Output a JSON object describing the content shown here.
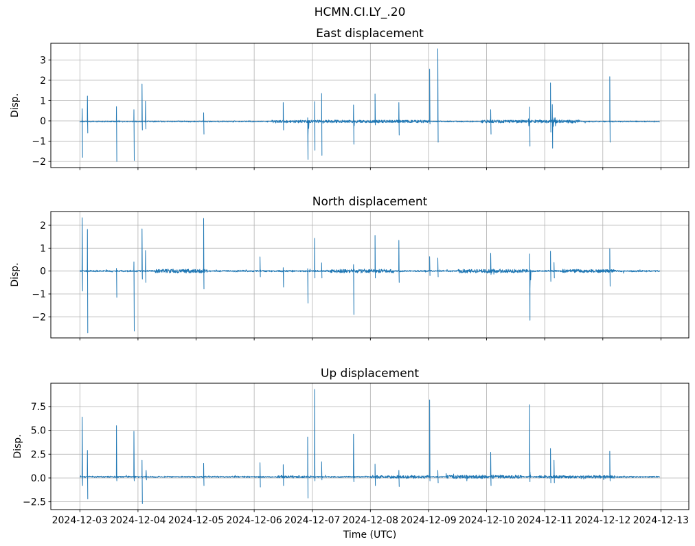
{
  "figure": {
    "suptitle": "HCMN.CI.LY_.20",
    "background_color": "#ffffff",
    "text_color": "#000000",
    "grid_color": "#b0b0b0",
    "spine_color": "#000000",
    "line_color": "#1f77b4"
  },
  "x_axis": {
    "label": "Time (UTC)",
    "tick_days": [
      1,
      2,
      3,
      4,
      5,
      6,
      7,
      8,
      9,
      10,
      11
    ],
    "tick_labels": [
      "2024-12-03",
      "2024-12-04",
      "2024-12-05",
      "2024-12-06",
      "2024-12-07",
      "2024-12-08",
      "2024-12-09",
      "2024-12-10",
      "2024-12-11",
      "2024-12-12",
      "2024-12-13"
    ]
  },
  "chart_data": [
    {
      "id": "east",
      "type": "line",
      "title": "East displacement",
      "ylabel": "Disp.",
      "grid": true,
      "show_x_tick_labels": false,
      "xlim_days": [
        0.5,
        11.48
      ],
      "ylim": [
        -2.3,
        3.82
      ],
      "y_ticks": [
        {
          "v": -2,
          "label": "−2"
        },
        {
          "v": -1,
          "label": "−1"
        },
        {
          "v": 0,
          "label": "0"
        },
        {
          "v": 1,
          "label": "1"
        },
        {
          "v": 2,
          "label": "2"
        },
        {
          "v": 3,
          "label": "3"
        }
      ],
      "baseline": -0.03,
      "noise": 0.03,
      "data_start_day": 1.0,
      "data_end_day": 10.98,
      "noise_bands": [
        {
          "from": 4.3,
          "to": 7.0,
          "amp": 0.04
        },
        {
          "from": 7.9,
          "to": 9.6,
          "amp": 0.05
        }
      ],
      "spikes": [
        {
          "day": 1.04,
          "up": 0.6,
          "down": -1.8
        },
        {
          "day": 1.13,
          "up": 1.22,
          "down": -0.6
        },
        {
          "day": 1.63,
          "up": 0.7,
          "down": -2.0
        },
        {
          "day": 1.93,
          "up": 0.55,
          "down": -1.95
        },
        {
          "day": 2.07,
          "up": 1.82,
          "down": -0.45
        },
        {
          "day": 2.13,
          "up": 0.97,
          "down": -0.4
        },
        {
          "day": 3.13,
          "up": 0.4,
          "down": -0.65
        },
        {
          "day": 4.5,
          "up": 0.9,
          "down": -0.45
        },
        {
          "day": 4.92,
          "up": 0.15,
          "down": -1.9,
          "w": 0.03
        },
        {
          "day": 5.04,
          "up": 0.95,
          "down": -1.45
        },
        {
          "day": 5.16,
          "up": 1.35,
          "down": -1.7
        },
        {
          "day": 5.71,
          "up": 0.78,
          "down": -1.15,
          "w": 0.02
        },
        {
          "day": 6.08,
          "up": 1.32,
          "down": -0.2
        },
        {
          "day": 6.49,
          "up": 0.9,
          "down": -0.7
        },
        {
          "day": 7.02,
          "up": 2.55,
          "down": -0.15
        },
        {
          "day": 7.16,
          "up": 3.55,
          "down": -1.05
        },
        {
          "day": 8.07,
          "up": 0.55,
          "down": -0.65
        },
        {
          "day": 8.72,
          "up": 0.1,
          "down": -0.25,
          "w": 0.05
        },
        {
          "day": 8.74,
          "up": 0.68,
          "down": -1.25
        },
        {
          "day": 9.1,
          "up": 1.87,
          "down": -0.55
        },
        {
          "day": 9.13,
          "up": 0.8,
          "down": -1.35,
          "w": 0.03
        },
        {
          "day": 9.18,
          "up": 0.15,
          "down": -0.25,
          "w": 0.05
        },
        {
          "day": 10.12,
          "up": 2.17,
          "down": -1.05
        }
      ]
    },
    {
      "id": "north",
      "type": "line",
      "title": "North displacement",
      "ylabel": "Disp.",
      "grid": true,
      "show_x_tick_labels": false,
      "xlim_days": [
        0.5,
        11.48
      ],
      "ylim": [
        -2.92,
        2.6
      ],
      "y_ticks": [
        {
          "v": -2,
          "label": "−2"
        },
        {
          "v": -1,
          "label": "−1"
        },
        {
          "v": 0,
          "label": "0"
        },
        {
          "v": 1,
          "label": "1"
        },
        {
          "v": 2,
          "label": "2"
        }
      ],
      "baseline": 0.0,
      "noise": 0.035,
      "data_start_day": 1.0,
      "data_end_day": 10.98,
      "noise_bands": [
        {
          "from": 2.3,
          "to": 3.2,
          "amp": 0.05
        },
        {
          "from": 5.3,
          "to": 6.4,
          "amp": 0.05
        },
        {
          "from": 7.5,
          "to": 8.7,
          "amp": 0.05
        },
        {
          "from": 9.3,
          "to": 10.2,
          "amp": 0.04
        }
      ],
      "spikes": [
        {
          "day": 1.04,
          "up": 2.33,
          "down": -0.87
        },
        {
          "day": 1.13,
          "up": 1.82,
          "down": -2.7
        },
        {
          "day": 1.63,
          "up": 0.12,
          "down": -1.15
        },
        {
          "day": 1.93,
          "up": 0.4,
          "down": -2.62
        },
        {
          "day": 2.07,
          "up": 1.84,
          "down": -0.35
        },
        {
          "day": 2.13,
          "up": 0.9,
          "down": -0.5
        },
        {
          "day": 3.13,
          "up": 2.3,
          "down": -0.78
        },
        {
          "day": 4.1,
          "up": 0.62,
          "down": -0.25
        },
        {
          "day": 4.5,
          "up": 0.15,
          "down": -0.7
        },
        {
          "day": 4.92,
          "up": 0.1,
          "down": -1.4
        },
        {
          "day": 5.04,
          "up": 1.43,
          "down": -0.3
        },
        {
          "day": 5.16,
          "up": 0.36,
          "down": -0.3
        },
        {
          "day": 5.71,
          "up": 0.28,
          "down": -1.9
        },
        {
          "day": 6.08,
          "up": 1.56,
          "down": -0.3
        },
        {
          "day": 6.49,
          "up": 1.34,
          "down": -0.5
        },
        {
          "day": 7.02,
          "up": 0.63,
          "down": -0.2
        },
        {
          "day": 7.16,
          "up": 0.57,
          "down": -0.25
        },
        {
          "day": 8.07,
          "up": 0.78,
          "down": -0.15
        },
        {
          "day": 8.74,
          "up": 0.75,
          "down": -2.15,
          "w": 0.03
        },
        {
          "day": 9.1,
          "up": 0.87,
          "down": -0.45
        },
        {
          "day": 9.16,
          "up": 0.37,
          "down": -0.3
        },
        {
          "day": 10.12,
          "up": 0.97,
          "down": -0.66
        }
      ]
    },
    {
      "id": "up",
      "type": "line",
      "title": "Up displacement",
      "ylabel": "Disp.",
      "grid": true,
      "show_x_tick_labels": true,
      "xlim_days": [
        0.5,
        11.48
      ],
      "ylim": [
        -3.32,
        9.95
      ],
      "y_ticks": [
        {
          "v": -2.5,
          "label": "−2.5"
        },
        {
          "v": 0.0,
          "label": "0.0"
        },
        {
          "v": 2.5,
          "label": "2.5"
        },
        {
          "v": 5.0,
          "label": "5.0"
        },
        {
          "v": 7.5,
          "label": "7.5"
        }
      ],
      "baseline": 0.12,
      "noise": 0.08,
      "data_start_day": 1.0,
      "data_end_day": 10.98,
      "noise_bands": [
        {
          "from": 4.4,
          "to": 5.0,
          "amp": 0.06
        },
        {
          "from": 6.0,
          "to": 7.0,
          "amp": 0.08
        },
        {
          "from": 7.3,
          "to": 8.6,
          "amp": 0.1
        },
        {
          "from": 8.9,
          "to": 10.2,
          "amp": 0.08
        }
      ],
      "spikes": [
        {
          "day": 1.04,
          "up": 6.4,
          "down": -0.8
        },
        {
          "day": 1.13,
          "up": 2.9,
          "down": -2.2
        },
        {
          "day": 1.63,
          "up": 5.5,
          "down": -0.3
        },
        {
          "day": 1.93,
          "up": 4.9,
          "down": -0.3
        },
        {
          "day": 2.07,
          "up": 1.85,
          "down": -2.7
        },
        {
          "day": 2.14,
          "up": 0.8,
          "down": -0.2
        },
        {
          "day": 3.13,
          "up": 1.55,
          "down": -0.8
        },
        {
          "day": 4.1,
          "up": 1.6,
          "down": -0.95
        },
        {
          "day": 4.5,
          "up": 1.4,
          "down": -0.8
        },
        {
          "day": 4.92,
          "up": 4.3,
          "down": -2.1
        },
        {
          "day": 5.04,
          "up": 9.3,
          "down": -0.3
        },
        {
          "day": 5.16,
          "up": 1.7,
          "down": -0.2
        },
        {
          "day": 5.71,
          "up": 4.6,
          "down": -0.4
        },
        {
          "day": 6.08,
          "up": 1.45,
          "down": -0.8
        },
        {
          "day": 6.49,
          "up": 0.8,
          "down": -0.9
        },
        {
          "day": 7.02,
          "up": 8.2,
          "down": -0.3
        },
        {
          "day": 7.16,
          "up": 0.8,
          "down": -0.5
        },
        {
          "day": 8.07,
          "up": 2.7,
          "down": -0.8
        },
        {
          "day": 8.74,
          "up": 7.7,
          "down": -0.4,
          "w": 0.02
        },
        {
          "day": 9.1,
          "up": 3.1,
          "down": -0.5
        },
        {
          "day": 9.16,
          "up": 1.85,
          "down": -0.5,
          "w": 0.03
        },
        {
          "day": 10.12,
          "up": 2.8,
          "down": -0.3
        }
      ]
    }
  ]
}
